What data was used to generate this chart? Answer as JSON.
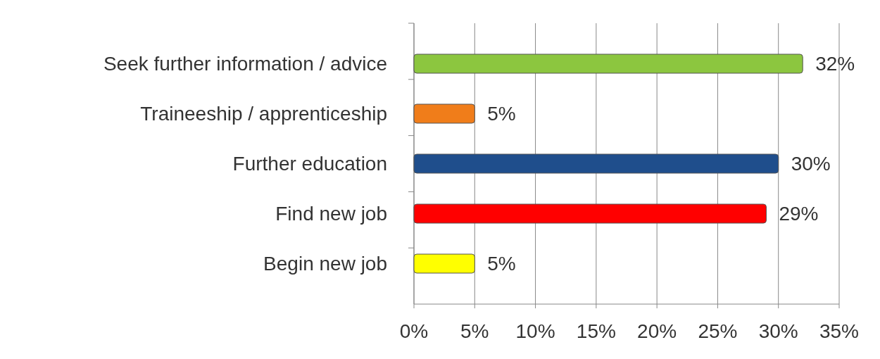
{
  "chart_data": {
    "type": "bar",
    "orientation": "horizontal",
    "categories": [
      "Seek further information / advice",
      "Traineeship / apprenticeship",
      "Further education",
      "Find new job",
      "Begin new job"
    ],
    "values": [
      32,
      5,
      30,
      29,
      5
    ],
    "colors": [
      "#8cc63f",
      "#f07d1a",
      "#1f4e8c",
      "#ff0000",
      "#ffff00"
    ],
    "value_labels": [
      "32%",
      "5%",
      "30%",
      "29%",
      "5%"
    ],
    "xlim": [
      0,
      35
    ],
    "xticks": [
      {
        "value": 0,
        "label": "0%"
      },
      {
        "value": 5,
        "label": "5%"
      },
      {
        "value": 10,
        "label": "10%"
      },
      {
        "value": 15,
        "label": "15%"
      },
      {
        "value": 20,
        "label": "20%"
      },
      {
        "value": 25,
        "label": "25%"
      },
      {
        "value": 30,
        "label": "30%"
      },
      {
        "value": 35,
        "label": "35%"
      }
    ],
    "grid": "x"
  }
}
